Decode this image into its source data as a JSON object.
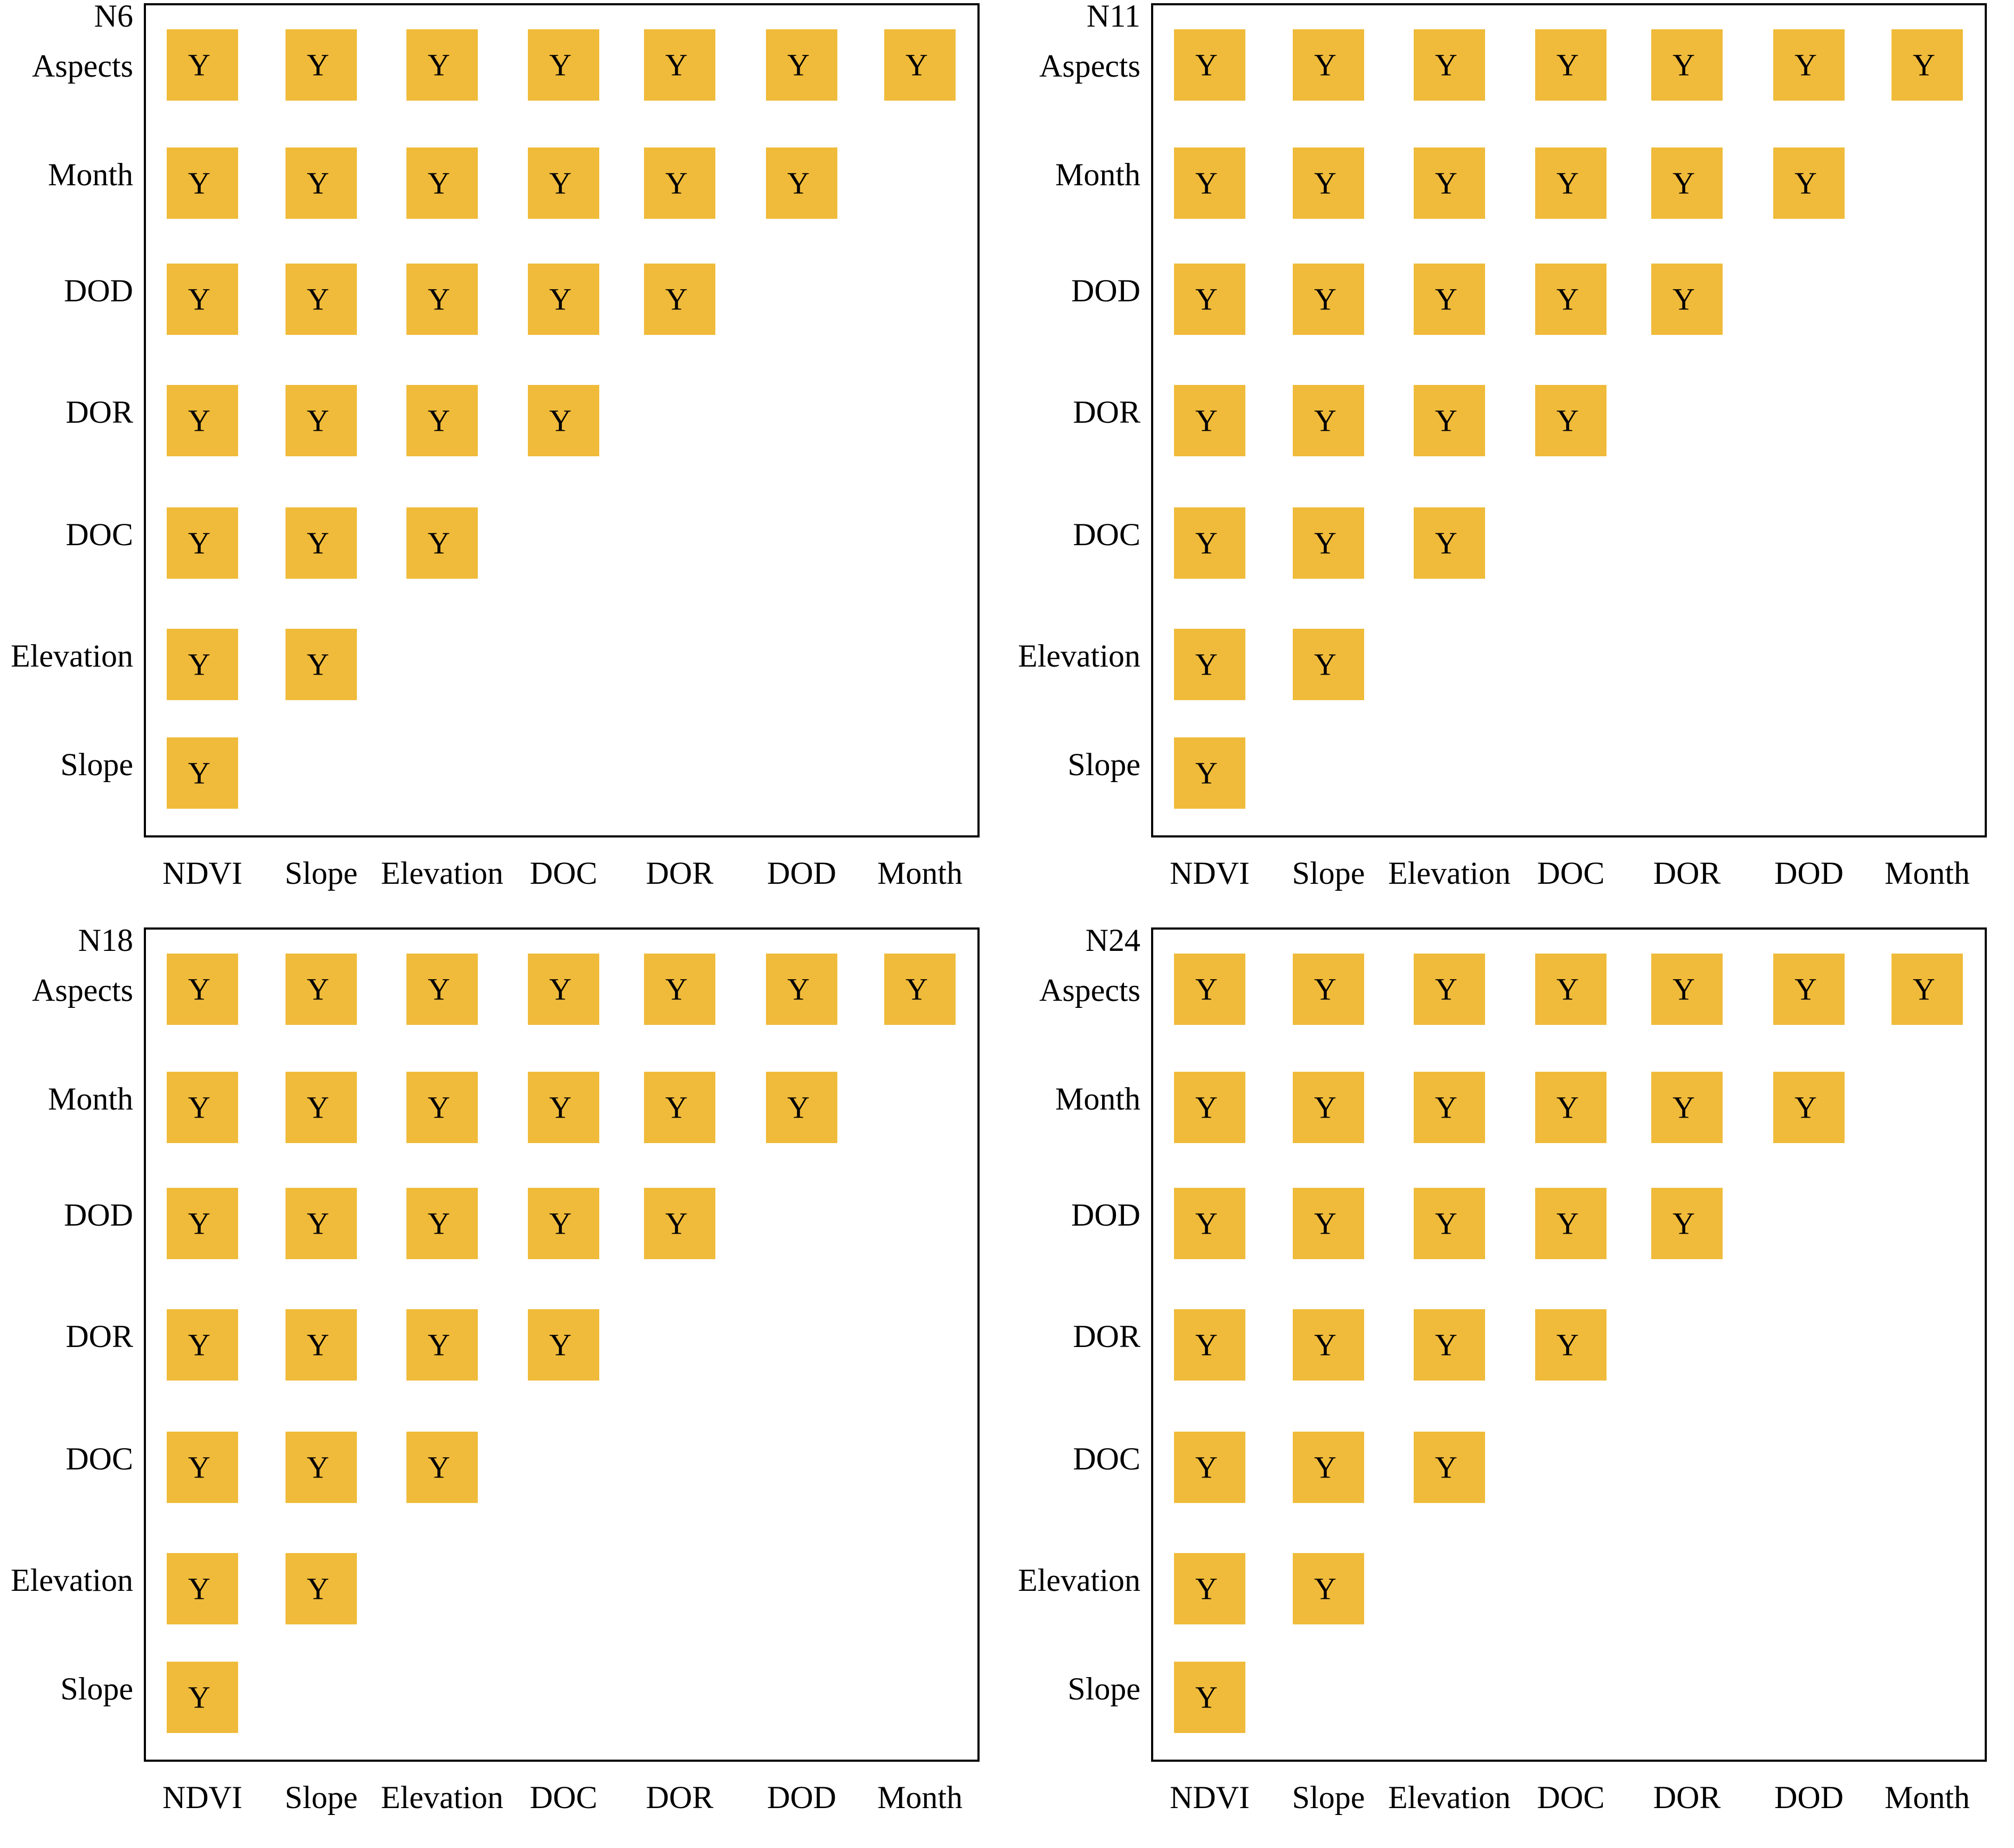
{
  "chart_data": [
    {
      "type": "heatmap",
      "title": "N6",
      "x_categories": [
        "NDVI",
        "Slope",
        "Elevation",
        "DOC",
        "DOR",
        "DOD",
        "Month"
      ],
      "y_categories": [
        "Aspects",
        "Month",
        "DOD",
        "DOR",
        "DOC",
        "Elevation",
        "Slope"
      ],
      "cell_label": "Y",
      "cells_per_row": [
        7,
        6,
        5,
        4,
        3,
        2,
        1
      ],
      "grid": false,
      "legend": "none"
    },
    {
      "type": "heatmap",
      "title": "N11",
      "x_categories": [
        "NDVI",
        "Slope",
        "Elevation",
        "DOC",
        "DOR",
        "DOD",
        "Month"
      ],
      "y_categories": [
        "Aspects",
        "Month",
        "DOD",
        "DOR",
        "DOC",
        "Elevation",
        "Slope"
      ],
      "cell_label": "Y",
      "cells_per_row": [
        7,
        6,
        5,
        4,
        3,
        2,
        1
      ],
      "grid": false,
      "legend": "none"
    },
    {
      "type": "heatmap",
      "title": "N18",
      "x_categories": [
        "NDVI",
        "Slope",
        "Elevation",
        "DOC",
        "DOR",
        "DOD",
        "Month"
      ],
      "y_categories": [
        "Aspects",
        "Month",
        "DOD",
        "DOR",
        "DOC",
        "Elevation",
        "Slope"
      ],
      "cell_label": "Y",
      "cells_per_row": [
        7,
        6,
        5,
        4,
        3,
        2,
        1
      ],
      "grid": false,
      "legend": "none"
    },
    {
      "type": "heatmap",
      "title": "N24",
      "x_categories": [
        "NDVI",
        "Slope",
        "Elevation",
        "DOC",
        "DOR",
        "DOD",
        "Month"
      ],
      "y_categories": [
        "Aspects",
        "Month",
        "DOD",
        "DOR",
        "DOC",
        "Elevation",
        "Slope"
      ],
      "cell_label": "Y",
      "cells_per_row": [
        7,
        6,
        5,
        4,
        3,
        2,
        1
      ],
      "grid": false,
      "legend": "none"
    }
  ],
  "colors": {
    "cell": "#f0bb3a",
    "frame": "#000000",
    "text": "#000000"
  }
}
